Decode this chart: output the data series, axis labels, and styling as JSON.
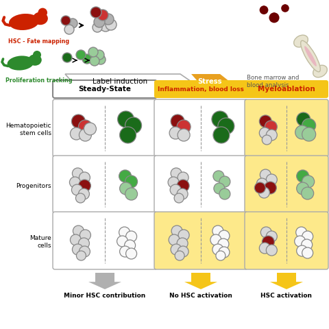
{
  "bg_color": "#ffffff",
  "red_mouse_color": "#cc2200",
  "green_mouse_color": "#2d8a2d",
  "stress_color": "#e8a020",
  "cell_red_dark": "#8b1010",
  "cell_red_med": "#cc3333",
  "cell_green_dark": "#1a6b1a",
  "cell_green_med": "#44aa44",
  "cell_green_light": "#99cc99",
  "cell_gray": "#b0b0b0",
  "cell_gray_light": "#d8d8d8",
  "cell_white": "#f8f8f8",
  "cell_outline": "#888888",
  "yellow_bg": "#f5c518",
  "yellow_bg_light": "#fde98a",
  "label_steady": "Steady-State",
  "label_inflam": "Inflammation, blood loss",
  "label_myeloabl": "Myeloablation",
  "label_hsc": "Hematopoietic\nstem cells",
  "label_prog": "Progenitors",
  "label_mature": "Mature\ncells",
  "label_minor": "Minor HSC contribution",
  "label_no_act": "No HSC activation",
  "label_hsc_act": "HSC activation",
  "label_fate": "HSC - Fate mapping",
  "label_prolif": "Proliferation tracking",
  "label_label_ind": "Label induction",
  "label_stress": "Stress",
  "label_bone": "Bone marrow and\nblood analysis"
}
